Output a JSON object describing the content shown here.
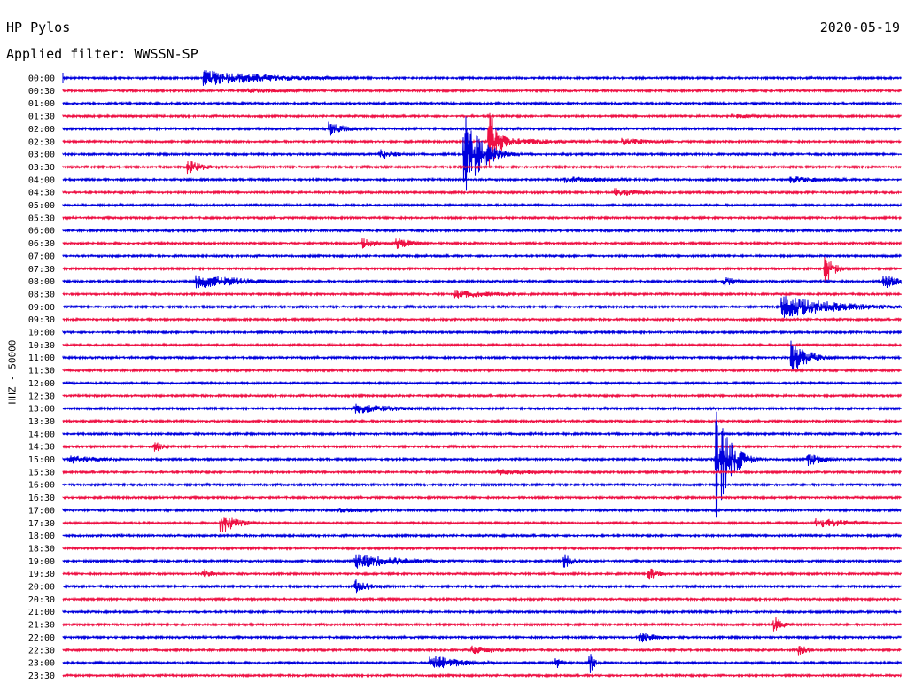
{
  "header": {
    "station": "HP Pylos",
    "date": "2020-05-19",
    "filter": "Applied filter: WWSSN-SP"
  },
  "chart_data": {
    "type": "line",
    "title": "HP Pylos",
    "subtitle": "Applied filter: WWSSN-SP",
    "date": "2020-05-19",
    "ylabel": "HHZ - 50000",
    "xlabel": "",
    "trace_labels": [
      "00:00",
      "00:30",
      "01:00",
      "01:30",
      "02:00",
      "02:30",
      "03:00",
      "03:30",
      "04:00",
      "04:30",
      "05:00",
      "05:30",
      "06:00",
      "06:30",
      "07:00",
      "07:30",
      "08:00",
      "08:30",
      "09:00",
      "09:30",
      "10:00",
      "10:30",
      "11:00",
      "11:30",
      "12:00",
      "12:30",
      "13:00",
      "13:30",
      "14:00",
      "14:30",
      "15:00",
      "15:30",
      "16:00",
      "16:30",
      "17:00",
      "17:30",
      "18:00",
      "18:30",
      "19:00",
      "19:30",
      "20:00",
      "20:30",
      "21:00",
      "21:30",
      "22:00",
      "22:30",
      "23:00",
      "23:30"
    ],
    "trace_minutes": 30,
    "colors": {
      "even": "#0000dd",
      "odd": "#ee1144"
    },
    "events": [
      {
        "trace": 0,
        "at": 0.17,
        "amp": 9,
        "dur": 0.09
      },
      {
        "trace": 1,
        "at": 0.22,
        "amp": 3,
        "dur": 0.08
      },
      {
        "trace": 3,
        "at": 0.8,
        "amp": 3,
        "dur": 0.05
      },
      {
        "trace": 4,
        "at": 0.32,
        "amp": 8,
        "dur": 0.02
      },
      {
        "trace": 5,
        "at": 0.51,
        "amp": 40,
        "dur": 0.01
      },
      {
        "trace": 5,
        "at": 0.52,
        "amp": 5,
        "dur": 0.09
      },
      {
        "trace": 5,
        "at": 0.67,
        "amp": 4,
        "dur": 0.05
      },
      {
        "trace": 6,
        "at": 0.38,
        "amp": 6,
        "dur": 0.02
      },
      {
        "trace": 6,
        "at": 0.48,
        "amp": 45,
        "dur": 0.02
      },
      {
        "trace": 7,
        "at": 0.15,
        "amp": 8,
        "dur": 0.02
      },
      {
        "trace": 8,
        "at": 0.6,
        "amp": 4,
        "dur": 0.08
      },
      {
        "trace": 8,
        "at": 0.87,
        "amp": 4,
        "dur": 0.06
      },
      {
        "trace": 9,
        "at": 0.66,
        "amp": 5,
        "dur": 0.04
      },
      {
        "trace": 13,
        "at": 0.36,
        "amp": 6,
        "dur": 0.02
      },
      {
        "trace": 13,
        "at": 0.4,
        "amp": 7,
        "dur": 0.02
      },
      {
        "trace": 15,
        "at": 0.91,
        "amp": 18,
        "dur": 0.01
      },
      {
        "trace": 16,
        "at": 0.16,
        "amp": 9,
        "dur": 0.06
      },
      {
        "trace": 16,
        "at": 0.79,
        "amp": 6,
        "dur": 0.015
      },
      {
        "trace": 16,
        "at": 0.98,
        "amp": 9,
        "dur": 0.02
      },
      {
        "trace": 17,
        "at": 0.47,
        "amp": 5,
        "dur": 0.06
      },
      {
        "trace": 18,
        "at": 0.86,
        "amp": 13,
        "dur": 0.07
      },
      {
        "trace": 22,
        "at": 0.87,
        "amp": 20,
        "dur": 0.02
      },
      {
        "trace": 26,
        "at": 0.35,
        "amp": 6,
        "dur": 0.06
      },
      {
        "trace": 29,
        "at": 0.11,
        "amp": 7,
        "dur": 0.01
      },
      {
        "trace": 30,
        "at": 0.78,
        "amp": 70,
        "dur": 0.015
      },
      {
        "trace": 30,
        "at": 0.89,
        "amp": 8,
        "dur": 0.02
      },
      {
        "trace": 30,
        "at": 0.01,
        "amp": 5,
        "dur": 0.04
      },
      {
        "trace": 31,
        "at": 0.52,
        "amp": 4,
        "dur": 0.06
      },
      {
        "trace": 34,
        "at": 0.33,
        "amp": 3,
        "dur": 0.06
      },
      {
        "trace": 35,
        "at": 0.19,
        "amp": 12,
        "dur": 0.02
      },
      {
        "trace": 35,
        "at": 0.9,
        "amp": 6,
        "dur": 0.05
      },
      {
        "trace": 38,
        "at": 0.35,
        "amp": 9,
        "dur": 0.06
      },
      {
        "trace": 38,
        "at": 0.6,
        "amp": 8,
        "dur": 0.01
      },
      {
        "trace": 39,
        "at": 0.17,
        "amp": 6,
        "dur": 0.01
      },
      {
        "trace": 39,
        "at": 0.7,
        "amp": 9,
        "dur": 0.01
      },
      {
        "trace": 40,
        "at": 0.35,
        "amp": 8,
        "dur": 0.02
      },
      {
        "trace": 43,
        "at": 0.85,
        "amp": 10,
        "dur": 0.01
      },
      {
        "trace": 44,
        "at": 0.69,
        "amp": 7,
        "dur": 0.02
      },
      {
        "trace": 45,
        "at": 0.49,
        "amp": 5,
        "dur": 0.04
      },
      {
        "trace": 45,
        "at": 0.88,
        "amp": 8,
        "dur": 0.01
      },
      {
        "trace": 46,
        "at": 0.44,
        "amp": 9,
        "dur": 0.04
      },
      {
        "trace": 46,
        "at": 0.59,
        "amp": 6,
        "dur": 0.01
      },
      {
        "trace": 46,
        "at": 0.63,
        "amp": 12,
        "dur": 0.005
      }
    ]
  }
}
